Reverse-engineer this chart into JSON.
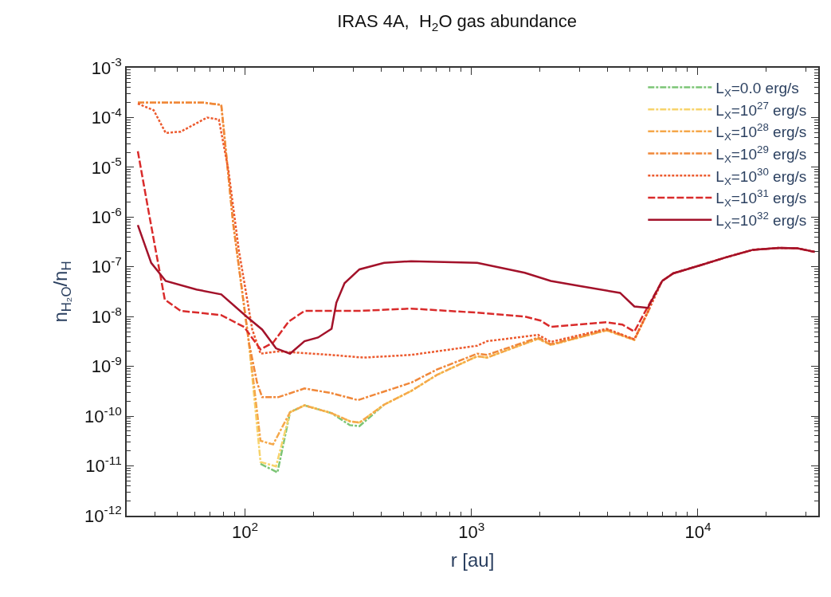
{
  "chart_data": {
    "type": "line",
    "title": "IRAS 4A,  H$_{2}$O gas abundance",
    "xlabel": "r [au]",
    "ylabel": "n$_{H₂O}$/n$_{H}$",
    "log": "xy",
    "legend": "top right",
    "xlim": [
      30,
      34000
    ],
    "ylim": [
      1e-12,
      0.001
    ],
    "xticks": [
      {
        "value": 100,
        "label": "10$^{2}$"
      },
      {
        "value": 1000,
        "label": "10$^{3}$"
      },
      {
        "value": 10000,
        "label": "10$^{4}$"
      }
    ],
    "yticks": [
      {
        "value": 1e-12,
        "label": "10$^{-12}$"
      },
      {
        "value": 1e-11,
        "label": "10$^{-11}$"
      },
      {
        "value": 1e-10,
        "label": "10$^{-10}$"
      },
      {
        "value": 1e-09,
        "label": "10$^{-9}$"
      },
      {
        "value": 1e-08,
        "label": "10$^{-8}$"
      },
      {
        "value": 1e-07,
        "label": "10$^{-7}$"
      },
      {
        "value": 1e-06,
        "label": "10$^{-6}$"
      },
      {
        "value": 1e-05,
        "label": "10$^{-5}$"
      },
      {
        "value": 0.0001,
        "label": "10$^{-4}$"
      },
      {
        "value": 0.001,
        "label": "10$^{-3}$"
      }
    ],
    "series": [
      {
        "name": "L$_{X}$=0.0 erg/s",
        "color": "#7cc576",
        "line_style": "dashdot",
        "x": [
          117,
          139,
          158,
          183,
          241,
          290,
          320,
          411
        ],
        "values": [
          1.1e-11,
          7.4e-12,
          1.2e-10,
          1.65e-10,
          1.15e-10,
          6.6e-11,
          6.3e-11,
          1.7e-10
        ]
      },
      {
        "name": "L$_{X}$=10$^{27}$ erg/s",
        "color": "#f7d36b",
        "line_style": "dashdot",
        "x": [
          104,
          117,
          137,
          158,
          183,
          241,
          290,
          320,
          411,
          541,
          706,
          1060,
          1170,
          1970,
          2240,
          3950,
          5240,
          6110
        ],
        "values": [
          3e-09,
          1.2e-11,
          9.8e-12,
          1.2e-10,
          1.65e-10,
          1.15e-10,
          7.9e-11,
          7.4e-11,
          1.7e-10,
          3.2e-10,
          6.8e-10,
          1.6e-09,
          1.5e-09,
          3.6e-09,
          2.7e-09,
          5.3e-09,
          3.4e-09,
          1.45e-08
        ]
      },
      {
        "name": "L$_{X}$=10$^{28}$ erg/s",
        "color": "#f5a84a",
        "line_style": "dashdot",
        "x": [
          33.6,
          50,
          65,
          78.5,
          88.6,
          104,
          117,
          133,
          158,
          183,
          241,
          290,
          320,
          411,
          541,
          706,
          1060,
          1170,
          1970,
          2240,
          3950,
          5240,
          6110
        ],
        "values": [
          0.0002,
          0.0002,
          0.0002,
          0.00018,
          7.4e-07,
          3e-09,
          3.2e-11,
          2.7e-11,
          1.2e-10,
          1.65e-10,
          1.15e-10,
          7.9e-11,
          7.4e-11,
          1.7e-10,
          3.2e-10,
          6.8e-10,
          1.6e-09,
          1.5e-09,
          3.6e-09,
          2.7e-09,
          5.3e-09,
          3.4e-09,
          1.45e-08
        ]
      },
      {
        "name": "L$_{X}$=10$^{29}$ erg/s",
        "color": "#f0883a",
        "line_style": "dashdot",
        "x": [
          33.6,
          50,
          65,
          78.5,
          88.6,
          104,
          113,
          119,
          140,
          183,
          241,
          315,
          541,
          706,
          1060,
          1170,
          1970,
          2240,
          3950,
          5240,
          6110
        ],
        "values": [
          0.0002,
          0.0002,
          0.0002,
          0.00018,
          7.4e-07,
          3e-09,
          4.7e-10,
          2.4e-10,
          2.4e-10,
          3.6e-10,
          2.9e-10,
          2.1e-10,
          4.7e-10,
          8.7e-10,
          1.8e-09,
          1.7e-09,
          3.8e-09,
          2.8e-09,
          5.5e-09,
          3.5e-09,
          1.45e-08
        ]
      },
      {
        "name": "L$_{X}$=10$^{30}$ erg/s",
        "color": "#ec5a2e",
        "line_style": "dotted",
        "x": [
          33.6,
          39.5,
          44.6,
          52,
          68,
          76.6,
          84.4,
          93.8,
          107.6,
          117,
          140,
          241,
          333,
          541,
          1060,
          1170,
          1970,
          2240,
          3950,
          5240,
          6110,
          6950,
          7780,
          10200,
          13300,
          17500,
          22800,
          27500,
          32800
        ],
        "values": [
          0.00019,
          0.00014,
          4.9e-05,
          5.2e-05,
          0.0001,
          9.1e-05,
          8.9e-06,
          2.2e-07,
          5.5e-09,
          1.8e-09,
          2e-09,
          1.7e-09,
          1.5e-09,
          1.7e-09,
          2.6e-09,
          3.2e-09,
          4.3e-09,
          3.1e-09,
          5.7e-09,
          3.5e-09,
          1.45e-08,
          5.2e-08,
          7.4e-08,
          1.07e-07,
          1.55e-07,
          2.2e-07,
          2.4e-07,
          2.35e-07,
          2e-07
        ]
      },
      {
        "name": "L$_{X}$=10$^{31}$ erg/s",
        "color": "#d92b2b",
        "line_style": "dashed",
        "x": [
          33.6,
          37.6,
          44.2,
          52,
          62.5,
          78.5,
          99,
          117,
          133,
          156,
          183,
          315,
          541,
          1060,
          1720,
          2020,
          2240,
          3950,
          4640,
          5240,
          5920,
          6950,
          7780,
          10200,
          13300,
          17500,
          22800,
          27500,
          32800
        ],
        "values": [
          2.1e-05,
          1.2e-06,
          2.2e-08,
          1.3e-08,
          1.2e-08,
          1.07e-08,
          6.2e-09,
          2.2e-09,
          3e-09,
          8e-09,
          1.3e-08,
          1.3e-08,
          1.45e-08,
          1.2e-08,
          1e-08,
          8.3e-09,
          6.2e-09,
          7.7e-09,
          6.9e-09,
          5e-09,
          1.4e-08,
          5.2e-08,
          7.4e-08,
          1.07e-07,
          1.55e-07,
          2.2e-07,
          2.4e-07,
          2.35e-07,
          2e-07
        ]
      },
      {
        "name": "L$_{X}$=10$^{32}$ erg/s",
        "color": "#a3122a",
        "line_style": "solid",
        "x": [
          33.6,
          38.5,
          44.6,
          61,
          78.5,
          101.6,
          119,
          137,
          158,
          183,
          210,
          241,
          253,
          275,
          320,
          411,
          541,
          1060,
          1460,
          1720,
          2240,
          3030,
          4530,
          5240,
          6010,
          6950,
          7780,
          10200,
          13300,
          17500,
          22800,
          27500,
          32800
        ],
        "values": [
          6.9e-07,
          1.2e-07,
          5.2e-08,
          3.5e-08,
          2.8e-08,
          1e-08,
          5.5e-09,
          2.3e-09,
          1.8e-09,
          3.2e-09,
          3.8e-09,
          5.7e-09,
          1.9e-08,
          4.7e-08,
          8.9e-08,
          1.2e-07,
          1.3e-07,
          1.2e-07,
          8.9e-08,
          7.6e-08,
          5.2e-08,
          4.1e-08,
          3e-08,
          1.6e-08,
          1.5e-08,
          5.2e-08,
          7.4e-08,
          1.07e-07,
          1.55e-07,
          2.2e-07,
          2.4e-07,
          2.35e-07,
          2e-07
        ]
      }
    ]
  }
}
